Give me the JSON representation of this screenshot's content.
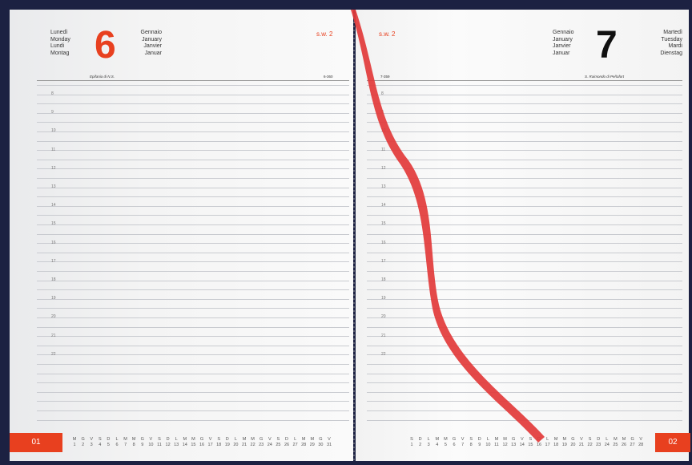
{
  "left_page": {
    "weekday": [
      "Lunedì",
      "Monday",
      "Lundi",
      "Montag"
    ],
    "day": 6,
    "month": [
      "Gennaio",
      "January",
      "Janvier",
      "Januar"
    ],
    "week": "s.w. 2",
    "note": "Epifania di N.S.",
    "day_count": "6-360",
    "hours": [
      8,
      9,
      10,
      11,
      12,
      13,
      14,
      15,
      16,
      17,
      18,
      19,
      20,
      21,
      22
    ],
    "calendar": {
      "tab": "01",
      "letters": [
        "M",
        "G",
        "V",
        "S",
        "D",
        "L",
        "M",
        "M",
        "G",
        "V",
        "S",
        "D",
        "L",
        "M",
        "M",
        "G",
        "V",
        "S",
        "D",
        "L",
        "M",
        "M",
        "G",
        "V",
        "S",
        "D",
        "L",
        "M",
        "M",
        "G",
        "V"
      ],
      "days": [
        1,
        2,
        3,
        4,
        5,
        6,
        7,
        8,
        9,
        10,
        11,
        12,
        13,
        14,
        15,
        16,
        17,
        18,
        19,
        20,
        21,
        22,
        23,
        24,
        25,
        26,
        27,
        28,
        29,
        30,
        31
      ]
    }
  },
  "right_page": {
    "weekday": [
      "Martedì",
      "Tuesday",
      "Mardi",
      "Dienstag"
    ],
    "day": 7,
    "month": [
      "Gennaio",
      "January",
      "Janvier",
      "Januar"
    ],
    "week": "s.w. 2",
    "note": "S. Raimondo di Peñafort",
    "day_count": "7-359",
    "hours": [
      8,
      9,
      10,
      11,
      12,
      13,
      14,
      15,
      16,
      17,
      18,
      19,
      20,
      21,
      22
    ],
    "calendar": {
      "tab": "02",
      "letters": [
        "S",
        "D",
        "L",
        "M",
        "M",
        "G",
        "V",
        "S",
        "D",
        "L",
        "M",
        "M",
        "G",
        "V",
        "S",
        "D",
        "L",
        "M",
        "M",
        "G",
        "V",
        "S",
        "D",
        "L",
        "M",
        "M",
        "G",
        "V"
      ],
      "days": [
        1,
        2,
        3,
        4,
        5,
        6,
        7,
        8,
        9,
        10,
        11,
        12,
        13,
        14,
        15,
        16,
        17,
        18,
        19,
        20,
        21,
        22,
        23,
        24,
        25,
        26,
        27,
        28
      ]
    }
  }
}
